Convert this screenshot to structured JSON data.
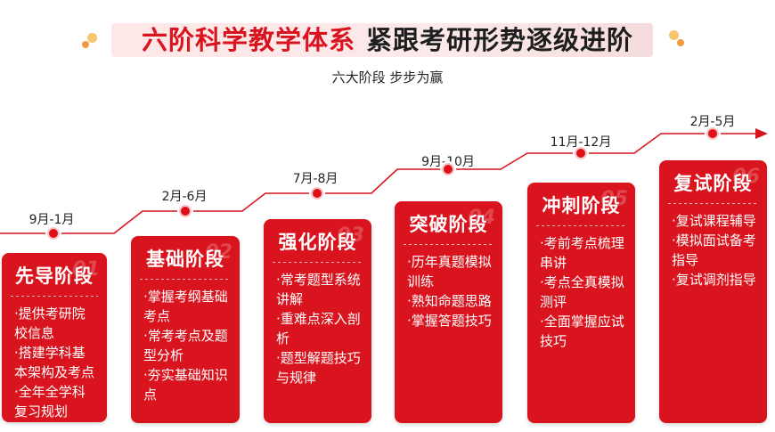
{
  "header": {
    "title_red": "六阶科学教学体系",
    "title_black": "紧跟考研形势逐级进阶",
    "subtitle": "六大阶段 步步为赢"
  },
  "colors": {
    "accent": "#d9141e",
    "dot_orange": "#f39a3c",
    "dot_yellow": "#f7c56b"
  },
  "stages": [
    {
      "date": "9月-1月",
      "title": "先导阶段",
      "num": "01",
      "items": [
        "·提供考研院校信息",
        "·搭建学科基本架构及考点",
        "·全年全学科复习规划"
      ]
    },
    {
      "date": "2月-6月",
      "title": "基础阶段",
      "num": "02",
      "items": [
        "·掌握考纲基础考点",
        "·常考考点及题型分析",
        "·夯实基础知识点"
      ]
    },
    {
      "date": "7月-8月",
      "title": "强化阶段",
      "num": "03",
      "items": [
        "·常考题型系统讲解",
        "·重难点深入剖析",
        "·题型解题技巧与规律"
      ]
    },
    {
      "date": "9月-10月",
      "title": "突破阶段",
      "num": "04",
      "items": [
        "·历年真题模拟训练",
        "·熟知命题思路",
        "·掌握答题技巧"
      ]
    },
    {
      "date": "11月-12月",
      "title": "冲刺阶段",
      "num": "05",
      "items": [
        "·考前考点梳理串讲",
        "·考点全真模拟测评",
        "·全面掌握应试技巧"
      ]
    },
    {
      "date": "2月-5月",
      "title": "复试阶段",
      "num": "06",
      "items": [
        "·复试课程辅导",
        "·模拟面试备考指导",
        "·复试调剂指导"
      ]
    }
  ]
}
